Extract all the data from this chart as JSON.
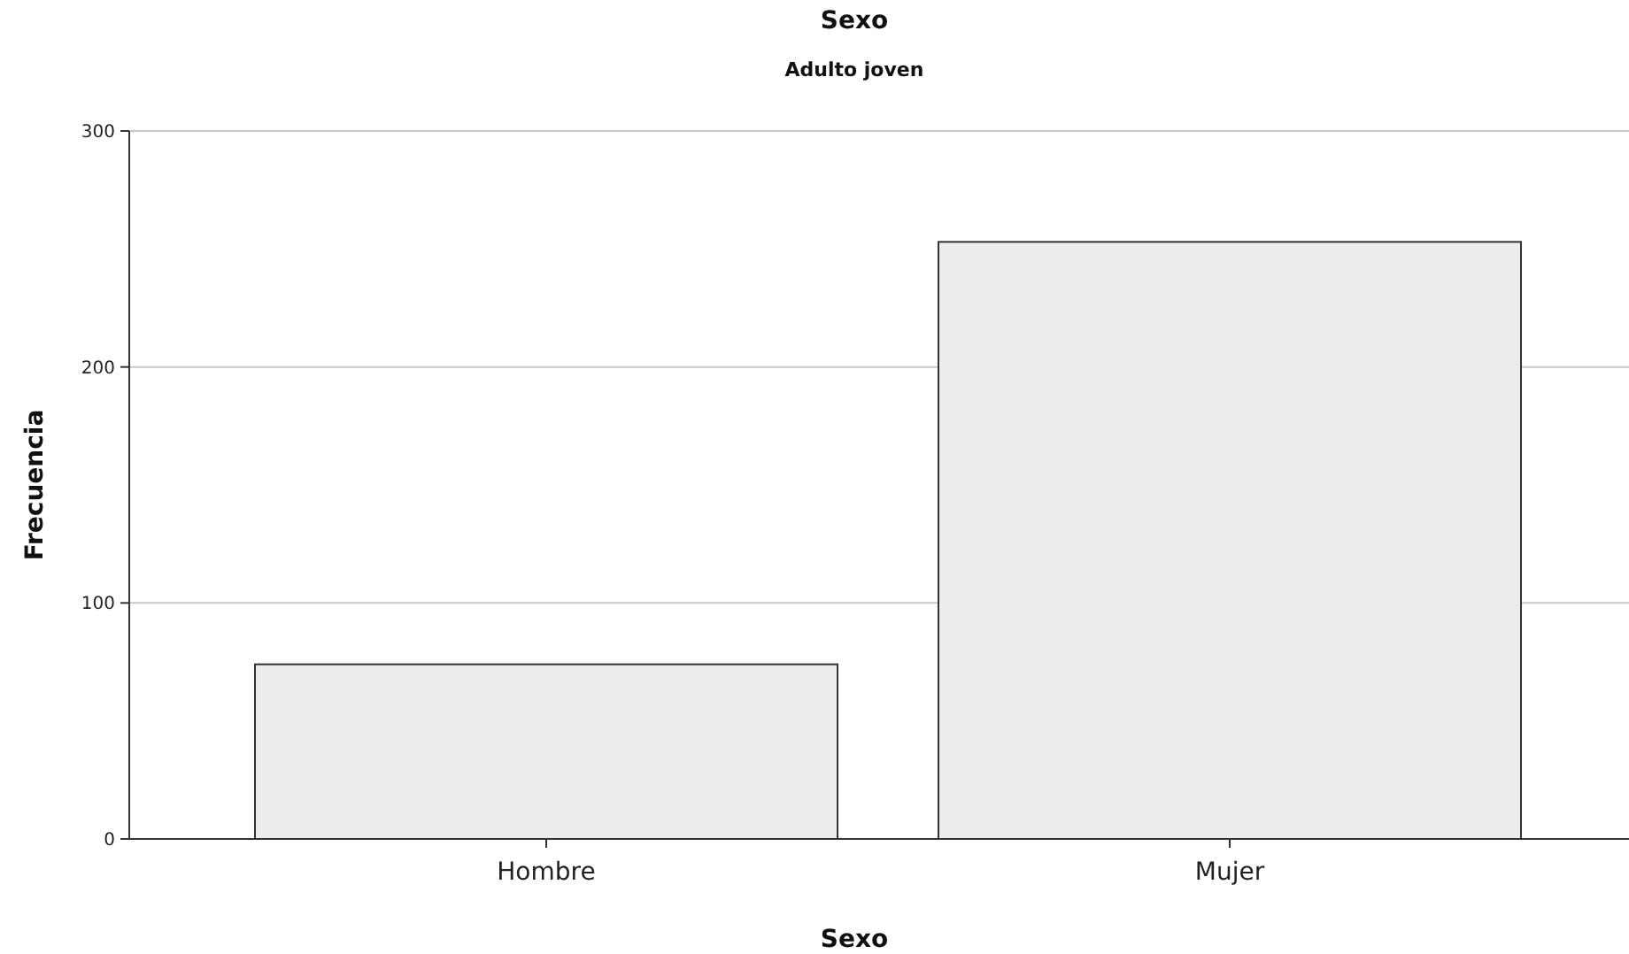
{
  "chart_data": {
    "type": "bar",
    "title": "Sexo",
    "subtitle": "Adulto joven",
    "xlabel": "Sexo",
    "ylabel": "Frecuencia",
    "categories": [
      "Hombre",
      "Mujer"
    ],
    "values": [
      74,
      253
    ],
    "color": "#ececec",
    "ylim": [
      0,
      300
    ],
    "yticks": [
      0,
      100,
      200,
      300
    ],
    "grid": "y"
  }
}
